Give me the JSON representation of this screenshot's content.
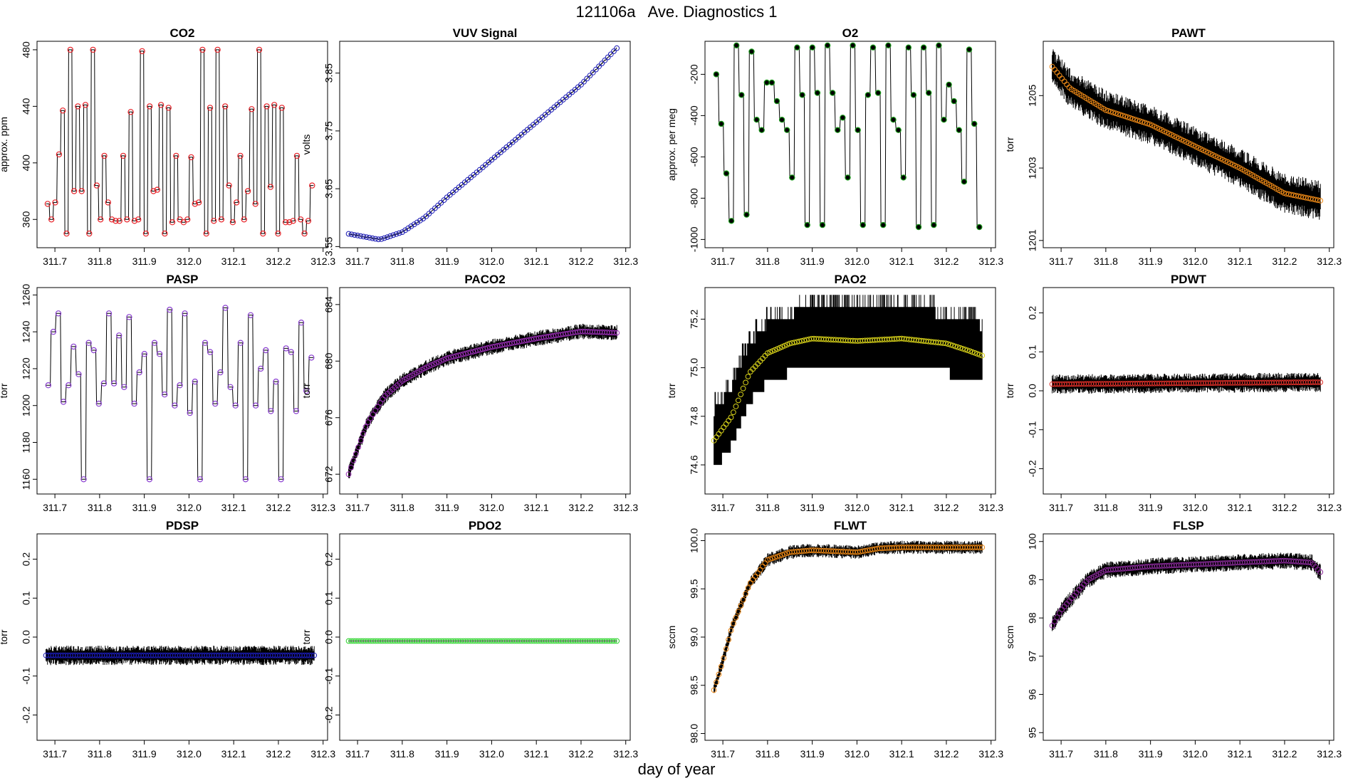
{
  "figure": {
    "title": "121106a   Ave. Diagnostics 1",
    "xlabel": "day of year"
  },
  "chart_data": [
    {
      "type": "line",
      "title": "CO2",
      "ylabel": "approx. ppm",
      "xlim": [
        311.66,
        312.31
      ],
      "ylim": [
        340,
        486
      ],
      "xticks": [
        311.7,
        311.8,
        311.9,
        312.0,
        312.1,
        312.2,
        312.3
      ],
      "xtick_labels": [
        "311.7",
        "311.8",
        "311.9",
        "312.0",
        "312.1",
        "312.2",
        "312.3"
      ],
      "yticks": [
        360,
        400,
        440,
        480
      ],
      "ytick_labels": [
        "360",
        "400",
        "440",
        "480"
      ],
      "marker_color": "#e8242a",
      "marker_fill": "none",
      "raw_style": "step",
      "raw_noise": 0,
      "levels": [
        371,
        360,
        372,
        406,
        437,
        350,
        480,
        380,
        440,
        380,
        441,
        350,
        480,
        384,
        360,
        405,
        372,
        360,
        359,
        359,
        405,
        360,
        436,
        359,
        360,
        479,
        350,
        440,
        380,
        381,
        441,
        350,
        439,
        358,
        405,
        360,
        358,
        360,
        404,
        371,
        372,
        480,
        350,
        439,
        359,
        480,
        360,
        440,
        384,
        358,
        372,
        405,
        360,
        380,
        438,
        371,
        480,
        350,
        440,
        383,
        441,
        350,
        439,
        358,
        358,
        359,
        405,
        360,
        350,
        359,
        384
      ]
    },
    {
      "type": "line",
      "title": "VUV Signal",
      "ylabel": "volts",
      "xlim": [
        311.66,
        312.31
      ],
      "ylim": [
        3.548,
        3.905
      ],
      "xticks": [
        311.7,
        311.8,
        311.9,
        312.0,
        312.1,
        312.2,
        312.3
      ],
      "xtick_labels": [
        "311.7",
        "311.8",
        "311.9",
        "312.0",
        "312.1",
        "312.2",
        "312.3"
      ],
      "yticks": [
        3.55,
        3.65,
        3.75,
        3.85
      ],
      "ytick_labels": [
        "3.55",
        "3.65",
        "3.75",
        "3.85"
      ],
      "marker_color": "#1b1bb4",
      "marker_fill": "none",
      "raw_style": "line",
      "raw_noise": 0.002,
      "curve": [
        [
          311.68,
          3.572
        ],
        [
          311.75,
          3.562
        ],
        [
          311.8,
          3.575
        ],
        [
          311.85,
          3.6
        ],
        [
          311.9,
          3.635
        ],
        [
          312.0,
          3.7
        ],
        [
          312.1,
          3.765
        ],
        [
          312.2,
          3.83
        ],
        [
          312.28,
          3.893
        ]
      ]
    },
    {
      "type": "line",
      "title": "O2",
      "ylabel": "approx. per meg",
      "xlim": [
        311.66,
        312.31
      ],
      "ylim": [
        -1040,
        -40
      ],
      "xticks": [
        311.7,
        311.8,
        311.9,
        312.0,
        312.1,
        312.2,
        312.3
      ],
      "xtick_labels": [
        "311.7",
        "311.8",
        "311.9",
        "312.0",
        "312.1",
        "312.2",
        "312.3"
      ],
      "yticks": [
        -1000,
        -800,
        -600,
        -400,
        -200
      ],
      "ytick_labels": [
        "-1000",
        "-800",
        "-600",
        "-400",
        "-200"
      ],
      "marker_color": "#1a9a1a",
      "marker_fill": "#000000",
      "raw_style": "step",
      "raw_noise": 0,
      "levels": [
        -200,
        -440,
        -680,
        -910,
        -60,
        -300,
        -880,
        -90,
        -420,
        -470,
        -240,
        -240,
        -330,
        -420,
        -470,
        -700,
        -70,
        -300,
        -930,
        -70,
        -290,
        -930,
        -60,
        -290,
        -470,
        -410,
        -700,
        -60,
        -470,
        -930,
        -300,
        -70,
        -290,
        -930,
        -60,
        -420,
        -470,
        -700,
        -70,
        -300,
        -940,
        -70,
        -290,
        -930,
        -60,
        -420,
        -250,
        -330,
        -470,
        -720,
        -80,
        -440,
        -940
      ]
    },
    {
      "type": "line",
      "title": "PAWT",
      "ylabel": "torr",
      "xlim": [
        311.66,
        312.31
      ],
      "ylim": [
        1200.8,
        1206.5
      ],
      "xticks": [
        311.7,
        311.8,
        311.9,
        312.0,
        312.1,
        312.2,
        312.3
      ],
      "xtick_labels": [
        "311.7",
        "311.8",
        "311.9",
        "312.0",
        "312.1",
        "312.2",
        "312.3"
      ],
      "yticks": [
        1201,
        1203,
        1205
      ],
      "ytick_labels": [
        "1201",
        "1203",
        "1205"
      ],
      "marker_color": "#ef8a17",
      "marker_fill": "none",
      "raw_style": "noise",
      "raw_noise": 0.55,
      "curve": [
        [
          311.68,
          1205.8
        ],
        [
          311.72,
          1205.2
        ],
        [
          311.8,
          1204.6
        ],
        [
          311.9,
          1204.2
        ],
        [
          312.0,
          1203.6
        ],
        [
          312.1,
          1203.0
        ],
        [
          312.2,
          1202.3
        ],
        [
          312.28,
          1202.1
        ]
      ]
    },
    {
      "type": "line",
      "title": "PASP",
      "ylabel": "torr",
      "xlim": [
        311.66,
        312.31
      ],
      "ylim": [
        1152,
        1264
      ],
      "xticks": [
        311.7,
        311.8,
        311.9,
        312.0,
        312.1,
        312.2,
        312.3
      ],
      "xtick_labels": [
        "311.7",
        "311.8",
        "311.9",
        "312.0",
        "312.1",
        "312.2",
        "312.3"
      ],
      "yticks": [
        1160,
        1180,
        1200,
        1220,
        1240,
        1260
      ],
      "ytick_labels": [
        "1160",
        "1180",
        "1200",
        "1220",
        "1240",
        "1260"
      ],
      "marker_color": "#8a3fd0",
      "marker_fill": "none",
      "raw_style": "step",
      "raw_noise": 0,
      "levels": [
        1211,
        1240,
        1250,
        1202,
        1211,
        1232,
        1217,
        1160,
        1234,
        1230,
        1201,
        1212,
        1250,
        1212,
        1238,
        1210,
        1248,
        1201,
        1218,
        1228,
        1160,
        1234,
        1228,
        1206,
        1252,
        1200,
        1211,
        1250,
        1196,
        1213,
        1160,
        1234,
        1229,
        1201,
        1218,
        1253,
        1210,
        1200,
        1234,
        1160,
        1249,
        1200,
        1220,
        1230,
        1197,
        1213,
        1160,
        1231,
        1229,
        1197,
        1245,
        1208,
        1226
      ]
    },
    {
      "type": "line",
      "title": "PACO2",
      "ylabel": "torr",
      "xlim": [
        311.66,
        312.31
      ],
      "ylim": [
        670.6,
        685.2
      ],
      "xticks": [
        311.7,
        311.8,
        311.9,
        312.0,
        312.1,
        312.2,
        312.3
      ],
      "xtick_labels": [
        "311.7",
        "311.8",
        "311.9",
        "312.0",
        "312.1",
        "312.2",
        "312.3"
      ],
      "yticks": [
        672,
        676,
        680,
        684
      ],
      "ytick_labels": [
        "672",
        "676",
        "680",
        "684"
      ],
      "marker_color": "#9a2fb5",
      "marker_fill": "none",
      "raw_style": "noise",
      "raw_noise": 0.55,
      "curve": [
        [
          311.68,
          672.0
        ],
        [
          311.72,
          675.5
        ],
        [
          311.76,
          677.5
        ],
        [
          311.8,
          678.6
        ],
        [
          311.85,
          679.5
        ],
        [
          311.9,
          680.2
        ],
        [
          312.0,
          681.0
        ],
        [
          312.1,
          681.6
        ],
        [
          312.2,
          682.1
        ],
        [
          312.28,
          682.0
        ]
      ]
    },
    {
      "type": "line",
      "title": "PAO2",
      "ylabel": "torr",
      "xlim": [
        311.66,
        312.31
      ],
      "ylim": [
        74.48,
        75.33
      ],
      "xticks": [
        311.7,
        311.8,
        311.9,
        312.0,
        312.1,
        312.2,
        312.3
      ],
      "xtick_labels": [
        "311.7",
        "311.8",
        "311.9",
        "312.0",
        "312.1",
        "312.2",
        "312.3"
      ],
      "yticks": [
        74.6,
        74.8,
        75.0,
        75.2
      ],
      "ytick_labels": [
        "74.6",
        "74.8",
        "75.0",
        "75.2"
      ],
      "marker_color": "#d9d31a",
      "marker_fill": "none",
      "raw_style": "quantized",
      "raw_noise": 0.02,
      "curve": [
        [
          311.68,
          74.7
        ],
        [
          311.72,
          74.8
        ],
        [
          311.76,
          74.98
        ],
        [
          311.8,
          75.06
        ],
        [
          311.85,
          75.1
        ],
        [
          311.9,
          75.12
        ],
        [
          312.0,
          75.11
        ],
        [
          312.1,
          75.12
        ],
        [
          312.2,
          75.1
        ],
        [
          312.25,
          75.07
        ],
        [
          312.28,
          75.05
        ]
      ]
    },
    {
      "type": "line",
      "title": "PDWT",
      "ylabel": "torr",
      "xlim": [
        311.66,
        312.31
      ],
      "ylim": [
        -0.265,
        0.265
      ],
      "xticks": [
        311.7,
        311.8,
        311.9,
        312.0,
        312.1,
        312.2,
        312.3
      ],
      "xtick_labels": [
        "311.7",
        "311.8",
        "311.9",
        "312.0",
        "312.1",
        "312.2",
        "312.3"
      ],
      "yticks": [
        -0.2,
        -0.1,
        0.0,
        0.1,
        0.2
      ],
      "ytick_labels": [
        "-0.2",
        "-0.1",
        "0.0",
        "0.1",
        "0.2"
      ],
      "marker_color": "#e0302a",
      "marker_fill": "none",
      "raw_style": "noise",
      "raw_noise": 0.025,
      "curve": [
        [
          311.68,
          0.017
        ],
        [
          312.28,
          0.022
        ]
      ]
    },
    {
      "type": "line",
      "title": "PDSP",
      "ylabel": "torr",
      "xlim": [
        311.66,
        312.31
      ],
      "ylim": [
        -0.265,
        0.265
      ],
      "xticks": [
        311.7,
        311.8,
        311.9,
        312.0,
        312.1,
        312.2,
        312.3
      ],
      "xtick_labels": [
        "311.7",
        "311.8",
        "311.9",
        "312.0",
        "312.1",
        "312.2",
        "312.3"
      ],
      "yticks": [
        -0.2,
        -0.1,
        0.0,
        0.1,
        0.2
      ],
      "ytick_labels": [
        "-0.2",
        "-0.1",
        "0.0",
        "0.1",
        "0.2"
      ],
      "marker_color": "#1b1bb4",
      "marker_fill": "none",
      "raw_style": "noise",
      "raw_noise": 0.025,
      "curve": [
        [
          311.68,
          -0.047
        ],
        [
          312.28,
          -0.047
        ]
      ]
    },
    {
      "type": "line",
      "title": "PDO2",
      "ylabel": "torr",
      "xlim": [
        311.66,
        312.31
      ],
      "ylim": [
        -0.265,
        0.265
      ],
      "xticks": [
        311.7,
        311.8,
        311.9,
        312.0,
        312.1,
        312.2,
        312.3
      ],
      "xtick_labels": [
        "311.7",
        "311.8",
        "311.9",
        "312.0",
        "312.1",
        "312.2",
        "312.3"
      ],
      "yticks": [
        -0.2,
        -0.1,
        0.0,
        0.1,
        0.2
      ],
      "ytick_labels": [
        "-0.2",
        "-0.1",
        "0.0",
        "0.1",
        "0.2"
      ],
      "marker_color": "#2ed12e",
      "marker_fill": "none",
      "raw_style": "line",
      "raw_noise": 0,
      "curve": [
        [
          311.68,
          -0.01
        ],
        [
          312.28,
          -0.01
        ]
      ]
    },
    {
      "type": "line",
      "title": "FLWT",
      "ylabel": "sccm",
      "xlim": [
        311.66,
        312.31
      ],
      "ylim": [
        97.93,
        100.07
      ],
      "xticks": [
        311.7,
        311.8,
        311.9,
        312.0,
        312.1,
        312.2,
        312.3
      ],
      "xtick_labels": [
        "311.7",
        "311.8",
        "311.9",
        "312.0",
        "312.1",
        "312.2",
        "312.3"
      ],
      "yticks": [
        98.0,
        98.5,
        99.0,
        99.5,
        100.0
      ],
      "ytick_labels": [
        "98.0",
        "98.5",
        "99.0",
        "99.5",
        "100.0"
      ],
      "marker_color": "#ef8a17",
      "marker_fill": "none",
      "raw_style": "noise",
      "raw_noise": 0.07,
      "curve": [
        [
          311.68,
          98.45
        ],
        [
          311.7,
          98.75
        ],
        [
          311.72,
          99.1
        ],
        [
          311.76,
          99.55
        ],
        [
          311.8,
          99.8
        ],
        [
          311.85,
          99.88
        ],
        [
          311.9,
          99.9
        ],
        [
          312.0,
          99.88
        ],
        [
          312.05,
          99.92
        ],
        [
          312.1,
          99.93
        ],
        [
          312.2,
          99.93
        ],
        [
          312.28,
          99.93
        ]
      ]
    },
    {
      "type": "line",
      "title": "FLSP",
      "ylabel": "sccm",
      "xlim": [
        311.66,
        312.31
      ],
      "ylim": [
        94.8,
        100.2
      ],
      "xticks": [
        311.7,
        311.8,
        311.9,
        312.0,
        312.1,
        312.2,
        312.3
      ],
      "xtick_labels": [
        "311.7",
        "311.8",
        "311.9",
        "312.0",
        "312.1",
        "312.2",
        "312.3"
      ],
      "yticks": [
        95,
        96,
        97,
        98,
        99,
        100
      ],
      "ytick_labels": [
        "95",
        "96",
        "97",
        "98",
        "99",
        "100"
      ],
      "marker_color": "#8a2b9a",
      "marker_fill": "none",
      "raw_style": "noise",
      "raw_noise": 0.22,
      "curve": [
        [
          311.68,
          97.8
        ],
        [
          311.7,
          98.2
        ],
        [
          311.73,
          98.6
        ],
        [
          311.76,
          99.0
        ],
        [
          311.8,
          99.25
        ],
        [
          311.85,
          99.3
        ],
        [
          311.9,
          99.35
        ],
        [
          312.0,
          99.4
        ],
        [
          312.1,
          99.45
        ],
        [
          312.2,
          99.5
        ],
        [
          312.26,
          99.45
        ],
        [
          312.28,
          99.2
        ]
      ]
    }
  ]
}
